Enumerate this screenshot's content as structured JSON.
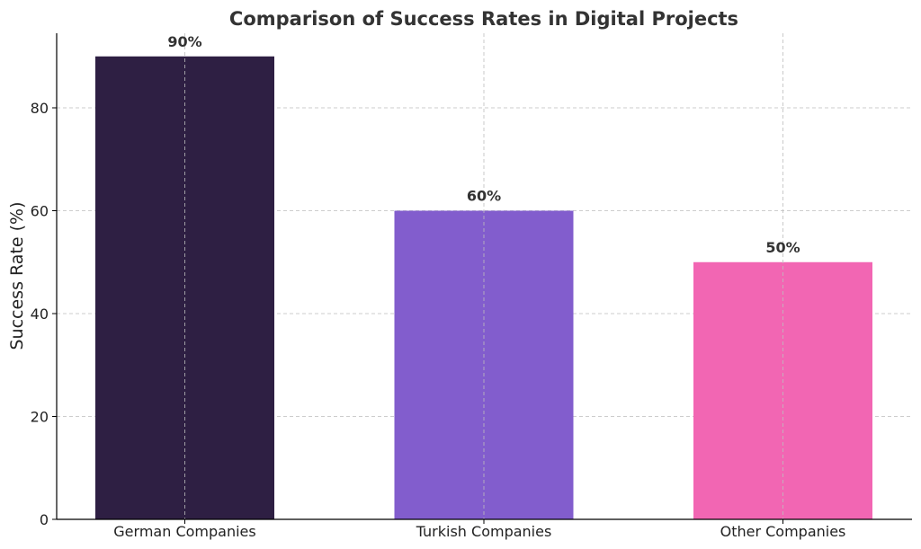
{
  "chart_data": {
    "type": "bar",
    "title": "Comparison of Success Rates in Digital Projects",
    "xlabel": "",
    "ylabel": "Success Rate (%)",
    "categories": [
      "German Companies",
      "Turkish Companies",
      "Other Companies"
    ],
    "values": [
      90,
      60,
      50
    ],
    "data_labels": [
      "90%",
      "60%",
      "50%"
    ],
    "colors": [
      "#2e1f43",
      "#825dcd",
      "#f266b3"
    ],
    "ylim": [
      0,
      94.5
    ],
    "yticks": [
      0,
      20,
      40,
      60,
      80
    ],
    "grid": true
  }
}
